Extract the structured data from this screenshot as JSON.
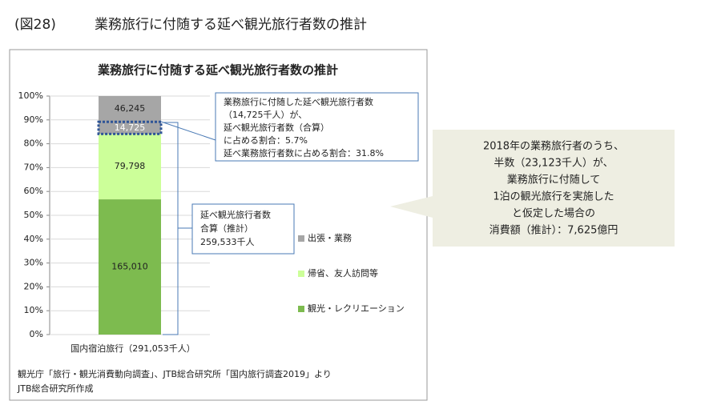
{
  "header": {
    "figure": "(図28)",
    "title": "業務旅行に付随する延べ観光旅行者数の推計"
  },
  "chart_data": {
    "type": "stacked_percent_bar",
    "title": "業務旅行に付随する延べ観光旅行者数の推計",
    "categories": [
      "国内宿泊旅行（291,053千人）"
    ],
    "series": [
      {
        "name": "観光・レクリエーション",
        "color": "#7dbb4f",
        "values": [
          165010
        ],
        "value_labels": [
          "165,010"
        ]
      },
      {
        "name": "帰省、友人訪問等",
        "color": "#ccff99",
        "values": [
          79798
        ],
        "value_labels": [
          "79,798"
        ]
      },
      {
        "name": "出張・業務",
        "color": "#a6a6a6",
        "values": [
          46245
        ],
        "value_labels": [
          "46,245"
        ]
      }
    ],
    "overlay": {
      "value": 14725,
      "value_label": "14,725",
      "color": "#2f5597"
    },
    "ylim": [
      0,
      100
    ],
    "yticks": [
      {
        "value": 0,
        "label": "0%"
      },
      {
        "value": 10,
        "label": "10%"
      },
      {
        "value": 20,
        "label": "20%"
      },
      {
        "value": 30,
        "label": "30%"
      },
      {
        "value": 40,
        "label": "40%"
      },
      {
        "value": 50,
        "label": "50%"
      },
      {
        "value": 60,
        "label": "60%"
      },
      {
        "value": 70,
        "label": "70%"
      },
      {
        "value": 80,
        "label": "80%"
      },
      {
        "value": 90,
        "label": "90%"
      },
      {
        "value": 100,
        "label": "100%"
      }
    ],
    "annotations": [
      {
        "lines": [
          "業務旅行に付随した延べ観光旅行者数",
          "（14,725千人）が、",
          "延べ観光旅行者数（合算）",
          "に占める割合：5.7%",
          "延べ業務旅行者数に占める割合：31.8%"
        ]
      },
      {
        "lines": [
          "延べ観光旅行者数",
          "合算（推計）",
          "259,533千人"
        ]
      }
    ],
    "source": [
      "観光庁「旅行・観光消費動向調査」、JTB総合研究所「国内旅行調査2019」より",
      "JTB総合研究所作成"
    ]
  },
  "callout": {
    "lines": [
      "2018年の業務旅行者のうち、",
      "半数（23,123千人）が、",
      "業務旅行に付随して",
      "1泊の観光旅行を実施した",
      "と仮定した場合の",
      "消費額（推計）：7,625億円"
    ]
  }
}
